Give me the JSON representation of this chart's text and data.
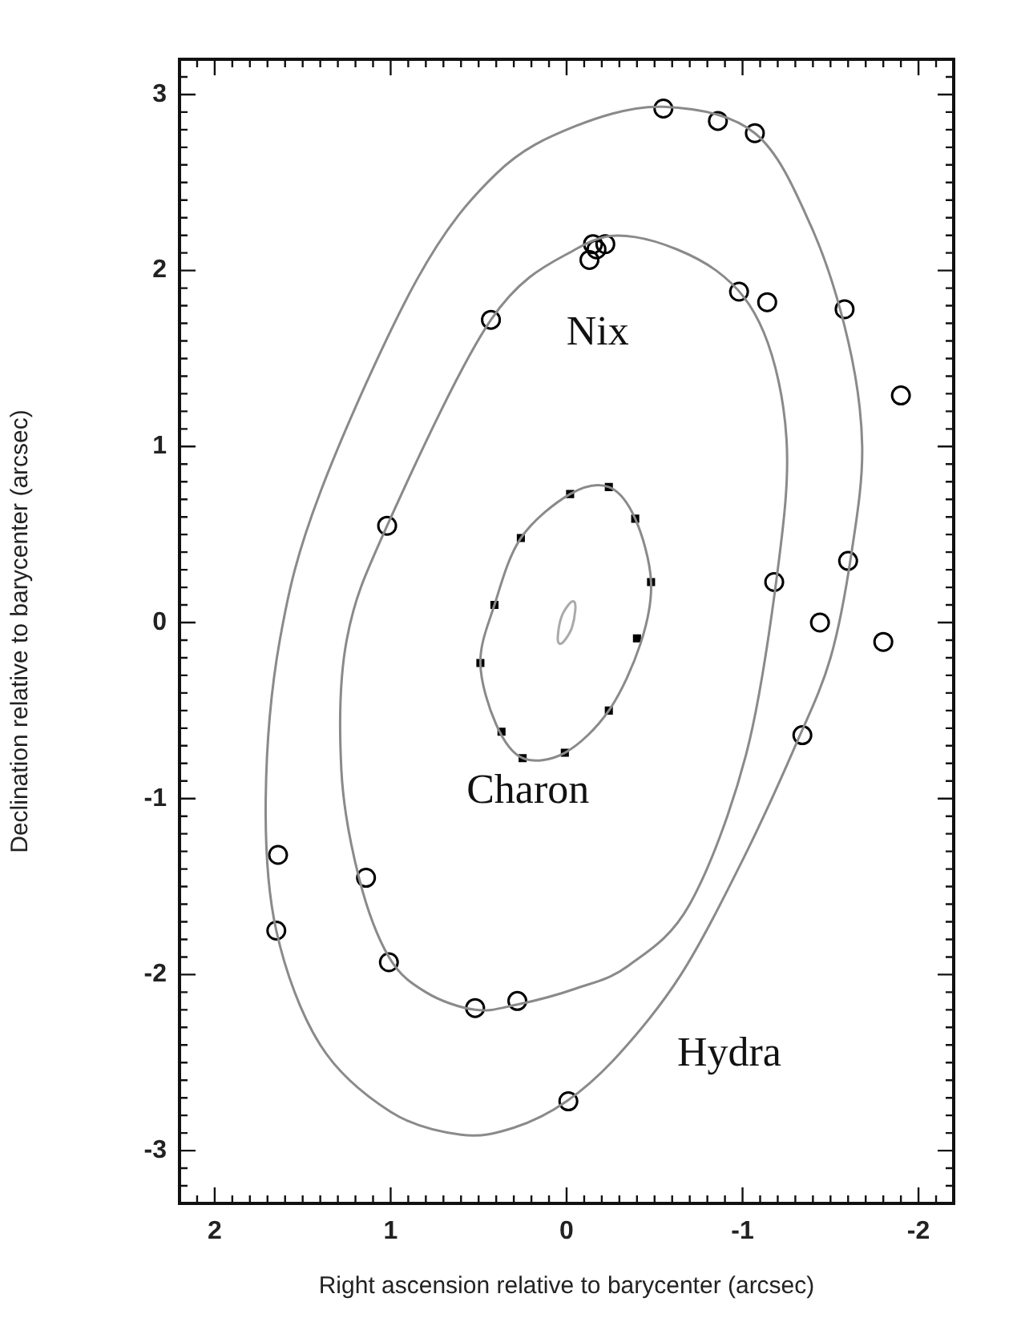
{
  "chart_data": {
    "type": "scatter",
    "xlabel": "Right ascension relative to barycenter (arcsec)",
    "ylabel": "Declination relative to barycenter (arcsec)",
    "xlim": [
      2.2,
      -2.2
    ],
    "ylim": [
      -3.3,
      3.2
    ],
    "xticks": [
      {
        "value": -2.1,
        "label": null
      },
      -2,
      {
        "value": -1.9,
        "label": null
      },
      {
        "value": -1.8,
        "label": null
      },
      {
        "value": -1.7,
        "label": null
      },
      {
        "value": -1.6,
        "label": null
      },
      {
        "value": -1.5,
        "label": null
      },
      {
        "value": -1.4,
        "label": null
      },
      {
        "value": -1.3,
        "label": null
      },
      {
        "value": -1.2,
        "label": null
      },
      {
        "value": -1.1,
        "label": null
      },
      -1,
      {
        "value": -0.9,
        "label": null
      },
      {
        "value": -0.8,
        "label": null
      },
      {
        "value": -0.7,
        "label": null
      },
      {
        "value": -0.6,
        "label": null
      },
      {
        "value": -0.5,
        "label": null
      },
      {
        "value": -0.4,
        "label": null
      },
      {
        "value": -0.3,
        "label": null
      },
      {
        "value": -0.2,
        "label": null
      },
      {
        "value": -0.1,
        "label": null
      },
      0,
      {
        "value": 0.1,
        "label": null
      },
      {
        "value": 0.2,
        "label": null
      },
      {
        "value": 0.3,
        "label": null
      },
      {
        "value": 0.4,
        "label": null
      },
      {
        "value": 0.5,
        "label": null
      },
      {
        "value": 0.6,
        "label": null
      },
      {
        "value": 0.7,
        "label": null
      },
      {
        "value": 0.8,
        "label": null
      },
      {
        "value": 0.9,
        "label": null
      },
      1,
      {
        "value": 1.1,
        "label": null
      },
      {
        "value": 1.2,
        "label": null
      },
      {
        "value": 1.3,
        "label": null
      },
      {
        "value": 1.4,
        "label": null
      },
      {
        "value": 1.5,
        "label": null
      },
      {
        "value": 1.6,
        "label": null
      },
      {
        "value": 1.7,
        "label": null
      },
      {
        "value": 1.8,
        "label": null
      },
      {
        "value": 1.9,
        "label": null
      },
      2,
      {
        "value": 2.1,
        "label": null
      }
    ],
    "yticks": [
      {
        "value": -3.2,
        "label": null
      },
      {
        "value": -3.1,
        "label": null
      },
      -3,
      {
        "value": -2.9,
        "label": null
      },
      {
        "value": -2.8,
        "label": null
      },
      {
        "value": -2.7,
        "label": null
      },
      {
        "value": -2.6,
        "label": null
      },
      {
        "value": -2.5,
        "label": null
      },
      {
        "value": -2.4,
        "label": null
      },
      {
        "value": -2.3,
        "label": null
      },
      {
        "value": -2.2,
        "label": null
      },
      {
        "value": -2.1,
        "label": null
      },
      -2,
      {
        "value": -1.9,
        "label": null
      },
      {
        "value": -1.8,
        "label": null
      },
      {
        "value": -1.7,
        "label": null
      },
      {
        "value": -1.6,
        "label": null
      },
      {
        "value": -1.5,
        "label": null
      },
      {
        "value": -1.4,
        "label": null
      },
      {
        "value": -1.3,
        "label": null
      },
      {
        "value": -1.2,
        "label": null
      },
      {
        "value": -1.1,
        "label": null
      },
      -1,
      {
        "value": -0.9,
        "label": null
      },
      {
        "value": -0.8,
        "label": null
      },
      {
        "value": -0.7,
        "label": null
      },
      {
        "value": -0.6,
        "label": null
      },
      {
        "value": -0.5,
        "label": null
      },
      {
        "value": -0.4,
        "label": null
      },
      {
        "value": -0.3,
        "label": null
      },
      {
        "value": -0.2,
        "label": null
      },
      {
        "value": -0.1,
        "label": null
      },
      0,
      {
        "value": 0.1,
        "label": null
      },
      {
        "value": 0.2,
        "label": null
      },
      {
        "value": 0.3,
        "label": null
      },
      {
        "value": 0.4,
        "label": null
      },
      {
        "value": 0.5,
        "label": null
      },
      {
        "value": 0.6,
        "label": null
      },
      {
        "value": 0.7,
        "label": null
      },
      {
        "value": 0.8,
        "label": null
      },
      {
        "value": 0.9,
        "label": null
      },
      1,
      {
        "value": 1.1,
        "label": null
      },
      {
        "value": 1.2,
        "label": null
      },
      {
        "value": 1.3,
        "label": null
      },
      {
        "value": 1.4,
        "label": null
      },
      {
        "value": 1.5,
        "label": null
      },
      {
        "value": 1.6,
        "label": null
      },
      {
        "value": 1.7,
        "label": null
      },
      {
        "value": 1.8,
        "label": null
      },
      {
        "value": 1.9,
        "label": null
      },
      2,
      {
        "value": 2.1,
        "label": null
      },
      {
        "value": 2.2,
        "label": null
      },
      {
        "value": 2.3,
        "label": null
      },
      {
        "value": 2.4,
        "label": null
      },
      {
        "value": 2.5,
        "label": null
      },
      {
        "value": 2.6,
        "label": null
      },
      {
        "value": 2.7,
        "label": null
      },
      {
        "value": 2.8,
        "label": null
      },
      {
        "value": 2.9,
        "label": null
      },
      3,
      {
        "value": 3.1,
        "label": null
      }
    ],
    "grid": false,
    "legend": false,
    "annotations": [
      "Nix",
      "Charon",
      "Hydra"
    ],
    "series": [
      {
        "type": "scatter",
        "color": "#000000",
        "marker": "circle",
        "x": [
          -0.55,
          -0.86,
          -1.07,
          -1.58,
          -1.9,
          -1.6,
          -1.44,
          -1.8,
          -1.34,
          -0.01,
          1.64,
          1.65
        ],
        "values": [
          2.92,
          2.85,
          2.78,
          1.78,
          1.29,
          0.35,
          0.0,
          -0.11,
          -0.64,
          -2.72,
          -1.32,
          -1.75
        ]
      },
      {
        "type": "scatter",
        "color": "#000000",
        "marker": "circle",
        "x": [
          -0.13,
          -0.17,
          -0.22,
          -0.15,
          -0.98,
          -1.14,
          -1.18,
          0.43,
          1.02,
          1.14,
          1.01,
          0.52,
          0.28
        ],
        "values": [
          2.06,
          2.12,
          2.15,
          2.15,
          1.88,
          1.82,
          0.23,
          1.72,
          0.55,
          -1.45,
          -1.93,
          -2.19,
          -2.15
        ]
      },
      {
        "type": "scatter",
        "color": "#000000",
        "marker": "square",
        "x": [
          0.49,
          0.41,
          0.26,
          -0.02,
          -0.24,
          -0.39,
          -0.48,
          -0.4,
          -0.24,
          0.01,
          0.25,
          0.37
        ],
        "values": [
          -0.23,
          0.1,
          0.48,
          0.73,
          0.77,
          0.59,
          0.23,
          -0.09,
          -0.5,
          -0.74,
          -0.77,
          -0.62
        ]
      }
    ]
  }
}
